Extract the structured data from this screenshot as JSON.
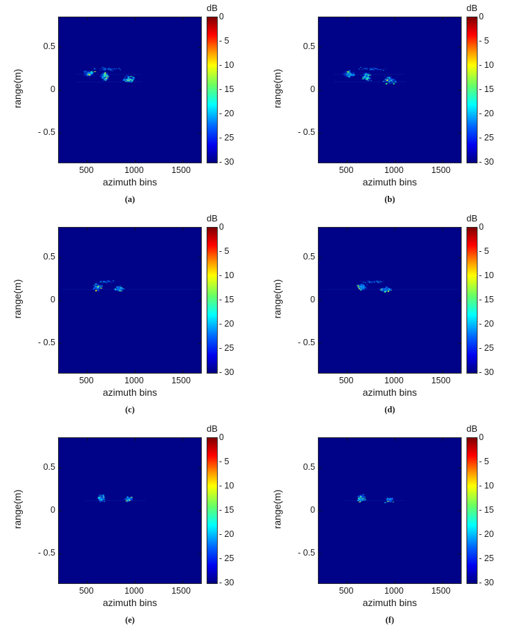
{
  "figure": {
    "panels": [
      {
        "caption": "(a)"
      },
      {
        "caption": "(b)"
      },
      {
        "caption": "(c)"
      },
      {
        "caption": "(d)"
      },
      {
        "caption": "(e)"
      },
      {
        "caption": "(f)"
      }
    ],
    "axes": {
      "x_label": "azimuth bins",
      "y_label": "range(m)",
      "x_ticks": [
        "500",
        "1000",
        "1500"
      ],
      "y_ticks": [
        "0.5",
        "0",
        "- 0.5"
      ],
      "x_tick_values": [
        500,
        1000,
        1500
      ],
      "y_tick_values": [
        0.5,
        0,
        -0.5
      ]
    },
    "colorbar": {
      "label": "dB",
      "ticks": [
        "0",
        "- 5",
        "- 10",
        "- 15",
        "- 20",
        "- 25",
        "- 30"
      ],
      "tick_values": [
        0,
        -5,
        -10,
        -15,
        -20,
        -25,
        -30
      ],
      "colormap": "jet",
      "gradient_stops": [
        "#7f0000 0%",
        "#ff0000 12%",
        "#ff9900 24%",
        "#ffff00 33%",
        "#66ff66 47%",
        "#00ffff 60%",
        "#0066ff 75%",
        "#0000ee 88%",
        "#000080 100%"
      ]
    },
    "colors": {
      "plot_background": "#000287",
      "text": "#1a1a1a",
      "page_background": "#ffffff"
    }
  },
  "chart_data": [
    {
      "type": "heatmap",
      "panel": "(a)",
      "xlabel": "azimuth bins",
      "ylabel": "range(m)",
      "xlim": [
        200,
        1700
      ],
      "ylim": [
        -0.85,
        0.85
      ],
      "colorbar": {
        "label": "dB",
        "range": [
          -30,
          0
        ],
        "colormap": "jet"
      },
      "background_db": -30,
      "clusters": [
        {
          "azimuth": 510,
          "range": 0.2,
          "spread_az": 70,
          "spread_rg": 0.045,
          "points": 130
        },
        {
          "azimuth": 680,
          "range": 0.16,
          "spread_az": 55,
          "spread_rg": 0.06,
          "points": 190
        },
        {
          "azimuth": 930,
          "range": 0.13,
          "spread_az": 75,
          "spread_rg": 0.05,
          "points": 150
        },
        {
          "azimuth": 700,
          "range": 0.25,
          "spread_az": 200,
          "spread_rg": 0.025,
          "points": 55,
          "dim": true
        }
      ],
      "streaks": [
        {
          "range": 0.1,
          "from": 380,
          "to": 1080,
          "alpha": 0.22
        },
        {
          "range": 0.19,
          "from": 380,
          "to": 1080,
          "alpha": 0.18
        }
      ]
    },
    {
      "type": "heatmap",
      "panel": "(b)",
      "xlabel": "azimuth bins",
      "ylabel": "range(m)",
      "xlim": [
        200,
        1700
      ],
      "ylim": [
        -0.85,
        0.85
      ],
      "colorbar": {
        "label": "dB",
        "range": [
          -30,
          0
        ],
        "colormap": "jet"
      },
      "background_db": -30,
      "clusters": [
        {
          "azimuth": 520,
          "range": 0.19,
          "spread_az": 80,
          "spread_rg": 0.05,
          "points": 150
        },
        {
          "azimuth": 700,
          "range": 0.16,
          "spread_az": 60,
          "spread_rg": 0.06,
          "points": 200
        },
        {
          "azimuth": 950,
          "range": 0.12,
          "spread_az": 90,
          "spread_rg": 0.05,
          "points": 170
        },
        {
          "azimuth": 750,
          "range": 0.25,
          "spread_az": 220,
          "spread_rg": 0.025,
          "points": 65,
          "dim": true
        }
      ],
      "streaks": [
        {
          "range": 0.1,
          "from": 360,
          "to": 1120,
          "alpha": 0.22
        },
        {
          "range": 0.19,
          "from": 360,
          "to": 1120,
          "alpha": 0.18
        }
      ]
    },
    {
      "type": "heatmap",
      "panel": "(c)",
      "xlabel": "azimuth bins",
      "ylabel": "range(m)",
      "xlim": [
        200,
        1700
      ],
      "ylim": [
        -0.85,
        0.85
      ],
      "colorbar": {
        "label": "dB",
        "range": [
          -30,
          0
        ],
        "colormap": "jet"
      },
      "background_db": -30,
      "clusters": [
        {
          "azimuth": 600,
          "range": 0.16,
          "spread_az": 55,
          "spread_rg": 0.05,
          "points": 180
        },
        {
          "azimuth": 830,
          "range": 0.14,
          "spread_az": 55,
          "spread_rg": 0.035,
          "points": 120
        },
        {
          "azimuth": 700,
          "range": 0.22,
          "spread_az": 150,
          "spread_rg": 0.02,
          "points": 40,
          "dim": true
        }
      ],
      "streaks": [
        {
          "range": 0.13,
          "from": 230,
          "to": 1680,
          "alpha": 0.2
        }
      ]
    },
    {
      "type": "heatmap",
      "panel": "(d)",
      "xlabel": "azimuth bins",
      "ylabel": "range(m)",
      "xlim": [
        200,
        1700
      ],
      "ylim": [
        -0.85,
        0.85
      ],
      "colorbar": {
        "label": "dB",
        "range": [
          -30,
          0
        ],
        "colormap": "jet"
      },
      "background_db": -30,
      "clusters": [
        {
          "azimuth": 650,
          "range": 0.16,
          "spread_az": 55,
          "spread_rg": 0.05,
          "points": 180
        },
        {
          "azimuth": 900,
          "range": 0.13,
          "spread_az": 70,
          "spread_rg": 0.035,
          "points": 130
        },
        {
          "azimuth": 760,
          "range": 0.22,
          "spread_az": 150,
          "spread_rg": 0.02,
          "points": 40,
          "dim": true
        }
      ],
      "streaks": [
        {
          "range": 0.13,
          "from": 230,
          "to": 1680,
          "alpha": 0.2
        }
      ]
    },
    {
      "type": "heatmap",
      "panel": "(e)",
      "xlabel": "azimuth bins",
      "ylabel": "range(m)",
      "xlim": [
        200,
        1700
      ],
      "ylim": [
        -0.85,
        0.85
      ],
      "colorbar": {
        "label": "dB",
        "range": [
          -30,
          0
        ],
        "colormap": "jet"
      },
      "background_db": -30,
      "clusters": [
        {
          "azimuth": 640,
          "range": 0.15,
          "spread_az": 50,
          "spread_rg": 0.055,
          "points": 170
        },
        {
          "azimuth": 930,
          "range": 0.14,
          "spread_az": 55,
          "spread_rg": 0.04,
          "points": 115
        }
      ],
      "streaks": [
        {
          "range": 0.12,
          "from": 480,
          "to": 1120,
          "alpha": 0.2
        }
      ]
    },
    {
      "type": "heatmap",
      "panel": "(f)",
      "xlabel": "azimuth bins",
      "ylabel": "range(m)",
      "xlim": [
        200,
        1700
      ],
      "ylim": [
        -0.85,
        0.85
      ],
      "colorbar": {
        "label": "dB",
        "range": [
          -30,
          0
        ],
        "colormap": "jet"
      },
      "background_db": -30,
      "clusters": [
        {
          "azimuth": 645,
          "range": 0.15,
          "spread_az": 50,
          "spread_rg": 0.055,
          "points": 170
        },
        {
          "azimuth": 940,
          "range": 0.13,
          "spread_az": 55,
          "spread_rg": 0.04,
          "points": 115
        }
      ],
      "streaks": [
        {
          "range": 0.12,
          "from": 480,
          "to": 1120,
          "alpha": 0.2
        }
      ]
    }
  ]
}
